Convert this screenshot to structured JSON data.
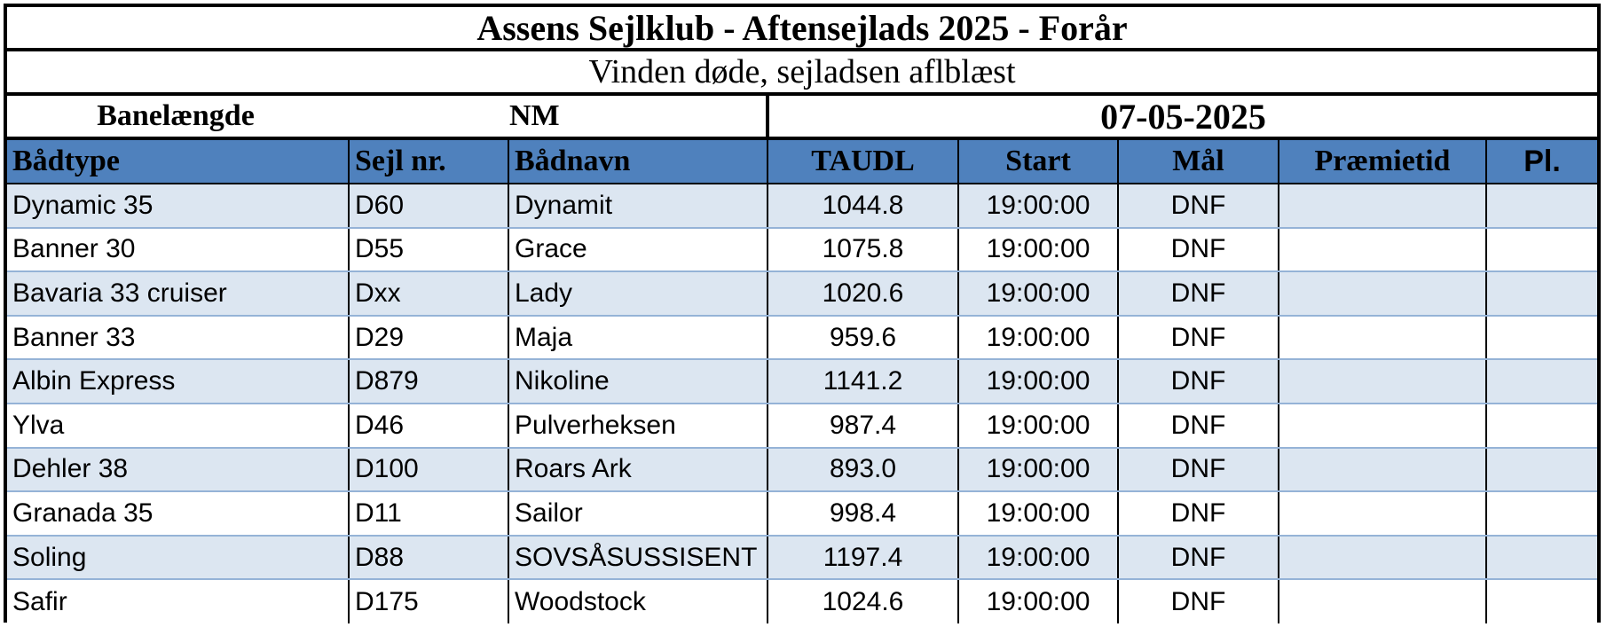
{
  "header": {
    "title": "Assens Sejlklub - Aftensejlads 2025 - Forår",
    "subtitle": "Vinden døde, sejladsen aflblæst",
    "course_length_label": "Banelængde",
    "course_length_unit": "NM",
    "date": "07-05-2025"
  },
  "columns": [
    "Bådtype",
    "Sejl nr.",
    "Bådnavn",
    "TAUDL",
    "Start",
    "Mål",
    "Præmietid",
    "Pl."
  ],
  "rows": [
    {
      "boat_type": "Dynamic 35",
      "sail_no": "D60",
      "boat_name": "Dynamit",
      "taudl": "1044.8",
      "start": "19:00:00",
      "finish": "DNF",
      "corrected": "",
      "place": ""
    },
    {
      "boat_type": "Banner 30",
      "sail_no": "D55",
      "boat_name": "Grace",
      "taudl": "1075.8",
      "start": "19:00:00",
      "finish": "DNF",
      "corrected": "",
      "place": ""
    },
    {
      "boat_type": "Bavaria 33 cruiser",
      "sail_no": "Dxx",
      "boat_name": "Lady",
      "taudl": "1020.6",
      "start": "19:00:00",
      "finish": "DNF",
      "corrected": "",
      "place": ""
    },
    {
      "boat_type": "Banner 33",
      "sail_no": "D29",
      "boat_name": "Maja",
      "taudl": "959.6",
      "start": "19:00:00",
      "finish": "DNF",
      "corrected": "",
      "place": ""
    },
    {
      "boat_type": "Albin Express",
      "sail_no": "D879",
      "boat_name": "Nikoline",
      "taudl": "1141.2",
      "start": "19:00:00",
      "finish": "DNF",
      "corrected": "",
      "place": ""
    },
    {
      "boat_type": "Ylva",
      "sail_no": "D46",
      "boat_name": "Pulverheksen",
      "taudl": "987.4",
      "start": "19:00:00",
      "finish": "DNF",
      "corrected": "",
      "place": ""
    },
    {
      "boat_type": "Dehler 38",
      "sail_no": "D100",
      "boat_name": "Roars Ark",
      "taudl": "893.0",
      "start": "19:00:00",
      "finish": "DNF",
      "corrected": "",
      "place": ""
    },
    {
      "boat_type": "Granada 35",
      "sail_no": "D11",
      "boat_name": "Sailor",
      "taudl": "998.4",
      "start": "19:00:00",
      "finish": "DNF",
      "corrected": "",
      "place": ""
    },
    {
      "boat_type": "Soling",
      "sail_no": "D88",
      "boat_name": "SOVSÅSUSSISENT",
      "taudl": "1197.4",
      "start": "19:00:00",
      "finish": "DNF",
      "corrected": "",
      "place": ""
    },
    {
      "boat_type": "Safir",
      "sail_no": "D175",
      "boat_name": "Woodstock",
      "taudl": "1024.6",
      "start": "19:00:00",
      "finish": "DNF",
      "corrected": "",
      "place": ""
    }
  ],
  "colors": {
    "header_fill": "#4f81bd",
    "band_fill": "#dce6f1",
    "row_separator": "#95b3d7"
  }
}
